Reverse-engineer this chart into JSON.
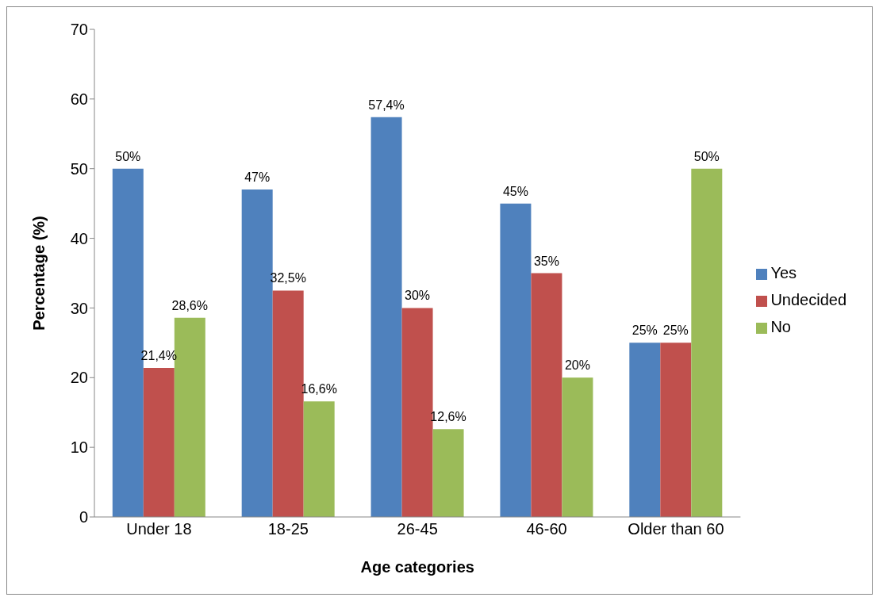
{
  "chart_data": {
    "type": "bar",
    "xlabel": "Age categories",
    "ylabel": "Percentage (%)",
    "categories": [
      "Under 18",
      "18-25",
      "26-45",
      "46-60",
      "Older than 60"
    ],
    "series": [
      {
        "name": "Yes",
        "color": "#4f81bd",
        "values": [
          50,
          47,
          57.4,
          45,
          25
        ],
        "value_labels": [
          "50%",
          "47%",
          "57,4%",
          "45%",
          "25%"
        ]
      },
      {
        "name": "Undecided",
        "color": "#c0504d",
        "values": [
          21.4,
          32.5,
          30,
          35,
          25
        ],
        "value_labels": [
          "21,4%",
          "32,5%",
          "30%",
          "35%",
          "25%"
        ]
      },
      {
        "name": "No",
        "color": "#9bbb59",
        "values": [
          28.6,
          16.6,
          12.6,
          20,
          50
        ],
        "value_labels": [
          "28,6%",
          "16,6%",
          "12,6%",
          "20%",
          "50%"
        ]
      }
    ],
    "ylim": [
      0,
      70
    ],
    "yticks": [
      0,
      10,
      20,
      30,
      40,
      50,
      60,
      70
    ],
    "grid": false,
    "legend": "right"
  }
}
